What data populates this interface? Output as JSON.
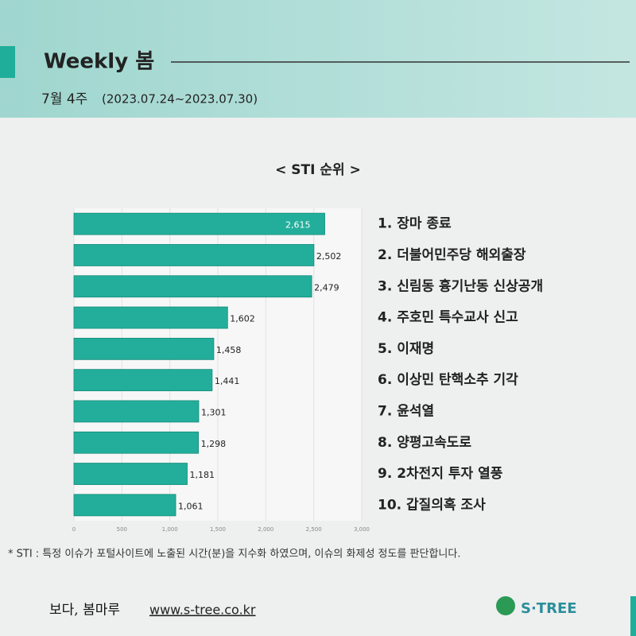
{
  "header": {
    "title": "Weekly 봄",
    "week": "7월 4주",
    "range": "(2023.07.24~2023.07.30)"
  },
  "chart_data": {
    "type": "hbar",
    "title": "< STI 순위 >",
    "categories": [
      "1. 장마 종료",
      "2. 더불어민주당 해외출장",
      "3. 신림동 흉기난동 신상공개",
      "4. 주호민 특수교사 신고",
      "5. 이재명",
      "6. 이상민 탄핵소추 기각",
      "7. 윤석열",
      "8. 양평고속도로",
      "9. 2차전지 투자 열풍",
      "10. 갑질의혹 조사"
    ],
    "values": [
      2615,
      2502,
      2479,
      1602,
      1458,
      1441,
      1301,
      1298,
      1181,
      1061
    ],
    "value_labels": [
      "2,615",
      "2,502",
      "2,479",
      "1,602",
      "1,458",
      "1,441",
      "1,301",
      "1,298",
      "1,181",
      "1,061"
    ],
    "color": "#22ae9b",
    "xlim": [
      0,
      3000
    ],
    "xticks": [
      0,
      500,
      {
        "value": 1000,
        "label": "1,000"
      },
      {
        "value": 1500,
        "label": "1,500"
      },
      {
        "value": 2000,
        "label": "2,000"
      },
      {
        "value": 2500,
        "label": "2,500"
      },
      {
        "value": 3000,
        "label": "3,000"
      }
    ],
    "grid": true
  },
  "footnote": "* STI : 특정 이슈가 포털사이트에 노출된 시간(분)을 지수화 하였으며, 이슈의 화제성 정도를 판단합니다.",
  "footer": {
    "brand": "보다, 봄마루",
    "url": "www.s-tree.co.kr",
    "logo": "S·TREE"
  }
}
